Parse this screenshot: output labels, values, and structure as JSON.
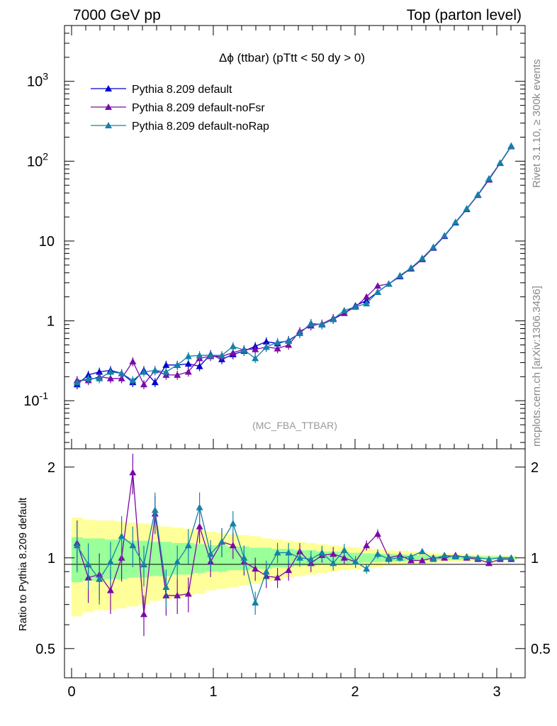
{
  "header": {
    "left": "7000 GeV pp",
    "right": "Top (parton level)"
  },
  "plot_title": "Δϕ (ttbar) (pTtt < 50 dy > 0)",
  "analysis_tag": "(MC_FBA_TTBAR)",
  "side_text_top": "Rivet 3.1.10, ≥ 300k events",
  "side_text_bottom": "mcplots.cern.ch [arXiv:1306.3436]",
  "ratio_ylabel": "Ratio to Pythia 8.209 default",
  "colors": {
    "default": "#0000cc",
    "noFsr": "#7a0aa8",
    "noRap": "#1481a8",
    "band_inner": "#99ff99",
    "band_outer": "#ffff99"
  },
  "legend": [
    {
      "label": "Pythia 8.209 default",
      "key": "default"
    },
    {
      "label": "Pythia 8.209 default-noFsr",
      "key": "noFsr"
    },
    {
      "label": "Pythia 8.209 default-noRap",
      "key": "noRap"
    }
  ],
  "main_ticks": {
    "y": [
      {
        "value": 0.1,
        "label": "10^-1"
      },
      {
        "value": 1,
        "label": "1"
      },
      {
        "value": 10,
        "label": "10"
      },
      {
        "value": 100,
        "label": "10^2"
      },
      {
        "value": 1000,
        "label": "10^3"
      }
    ]
  },
  "ratio_ticks": {
    "y": [
      {
        "value": 0.5,
        "label": "0.5"
      },
      {
        "value": 1,
        "label": "1"
      },
      {
        "value": 2,
        "label": "2"
      }
    ],
    "x": [
      {
        "value": 0,
        "label": "0"
      },
      {
        "value": 1,
        "label": "1"
      },
      {
        "value": 2,
        "label": "2"
      },
      {
        "value": 3,
        "label": "3"
      }
    ]
  },
  "chart_data": [
    {
      "type": "line",
      "title": "Δϕ (ttbar) (pTtt < 50 dy > 0)",
      "y_scale": "log",
      "xlim": [
        -0.05,
        3.2
      ],
      "ylim": [
        0.025,
        5000
      ],
      "legend_position": "top-left",
      "x": [
        0.039,
        0.118,
        0.196,
        0.275,
        0.353,
        0.432,
        0.51,
        0.589,
        0.667,
        0.746,
        0.824,
        0.903,
        0.981,
        1.06,
        1.139,
        1.217,
        1.296,
        1.374,
        1.453,
        1.531,
        1.61,
        1.689,
        1.767,
        1.846,
        1.924,
        2.003,
        2.081,
        2.16,
        2.238,
        2.317,
        2.395,
        2.474,
        2.552,
        2.631,
        2.709,
        2.788,
        2.867,
        2.945,
        3.024,
        3.102
      ],
      "series": [
        {
          "name": "Pythia 8.209 default",
          "key": "default",
          "values": [
            0.16,
            0.21,
            0.23,
            0.24,
            0.22,
            0.17,
            0.24,
            0.17,
            0.28,
            0.28,
            0.29,
            0.27,
            0.38,
            0.33,
            0.38,
            0.42,
            0.48,
            0.55,
            0.52,
            0.57,
            0.7,
            0.93,
            0.9,
            1.05,
            1.25,
            1.55,
            1.8,
            2.3,
            2.9,
            3.6,
            4.6,
            6.0,
            8.2,
            11.5,
            17.0,
            25.0,
            38.0,
            60.0,
            95.0,
            155.0
          ]
        },
        {
          "name": "Pythia 8.209 default-noFsr",
          "key": "noFsr",
          "values": [
            0.18,
            0.18,
            0.2,
            0.19,
            0.19,
            0.31,
            0.16,
            0.24,
            0.21,
            0.21,
            0.23,
            0.34,
            0.36,
            0.36,
            0.4,
            0.44,
            0.44,
            0.47,
            0.45,
            0.5,
            0.74,
            0.87,
            0.92,
            1.08,
            1.25,
            1.5,
            2.0,
            2.75,
            2.9,
            3.65,
            4.5,
            5.9,
            8.3,
            11.6,
            17.2,
            25.2,
            37.5,
            58.5,
            94.5,
            153.0
          ]
        },
        {
          "name": "Pythia 8.209 default-noRap",
          "key": "noRap",
          "values": [
            0.17,
            0.19,
            0.19,
            0.23,
            0.22,
            0.18,
            0.23,
            0.24,
            0.23,
            0.28,
            0.36,
            0.37,
            0.37,
            0.37,
            0.48,
            0.43,
            0.34,
            0.47,
            0.54,
            0.56,
            0.7,
            0.92,
            0.9,
            1.05,
            1.35,
            1.5,
            1.65,
            2.3,
            2.9,
            3.7,
            4.6,
            6.1,
            8.4,
            11.7,
            17.2,
            25.5,
            38.0,
            60.5,
            95.5,
            155.0
          ]
        }
      ]
    },
    {
      "type": "line",
      "ylabel": "Ratio to Pythia 8.209 default",
      "xlim": [
        -0.05,
        3.2
      ],
      "ylim": [
        0.4,
        2.3
      ],
      "reference": 1,
      "x": [
        0.039,
        0.118,
        0.196,
        0.275,
        0.353,
        0.432,
        0.51,
        0.589,
        0.667,
        0.746,
        0.824,
        0.903,
        0.981,
        1.06,
        1.139,
        1.217,
        1.296,
        1.374,
        1.453,
        1.531,
        1.61,
        1.689,
        1.767,
        1.846,
        1.924,
        2.003,
        2.081,
        2.16,
        2.238,
        2.317,
        2.395,
        2.474,
        2.552,
        2.631,
        2.709,
        2.788,
        2.867,
        2.945,
        3.024,
        3.102
      ],
      "band_outer": [
        0.36,
        0.34,
        0.33,
        0.33,
        0.32,
        0.31,
        0.3,
        0.28,
        0.27,
        0.26,
        0.25,
        0.24,
        0.22,
        0.21,
        0.2,
        0.19,
        0.18,
        0.16,
        0.15,
        0.14,
        0.13,
        0.12,
        0.11,
        0.1,
        0.09,
        0.085,
        0.075,
        0.07,
        0.06,
        0.055,
        0.05,
        0.045,
        0.04,
        0.035,
        0.03,
        0.028,
        0.025,
        0.022,
        0.02,
        0.018
      ],
      "band_inner": [
        0.17,
        0.16,
        0.16,
        0.15,
        0.15,
        0.14,
        0.14,
        0.13,
        0.13,
        0.12,
        0.12,
        0.11,
        0.1,
        0.1,
        0.09,
        0.09,
        0.08,
        0.08,
        0.07,
        0.07,
        0.06,
        0.06,
        0.05,
        0.05,
        0.045,
        0.04,
        0.035,
        0.032,
        0.03,
        0.027,
        0.024,
        0.021,
        0.019,
        0.017,
        0.015,
        0.013,
        0.012,
        0.011,
        0.01,
        0.009
      ],
      "series": [
        {
          "name": "Pythia 8.209 default-noFsr",
          "key": "noFsr",
          "values": [
            1.12,
            0.86,
            0.88,
            0.78,
            1.0,
            1.92,
            0.65,
            1.4,
            0.75,
            0.75,
            0.76,
            1.27,
            0.97,
            1.13,
            1.1,
            0.97,
            0.92,
            0.87,
            0.86,
            0.91,
            1.05,
            0.96,
            1.02,
            1.03,
            1.0,
            0.97,
            1.1,
            1.2,
            1.0,
            1.02,
            0.98,
            0.98,
            1.0,
            1.0,
            1.02,
            1.0,
            0.99,
            0.96,
            0.99,
            0.99
          ]
        },
        {
          "name": "Pythia 8.209 default-noRap",
          "key": "noRap",
          "values": [
            1.1,
            0.95,
            0.85,
            0.97,
            1.18,
            1.1,
            0.95,
            1.44,
            0.8,
            0.97,
            1.1,
            1.47,
            1.03,
            1.13,
            1.3,
            1.0,
            0.71,
            0.9,
            1.04,
            1.04,
            1.0,
            0.99,
            1.04,
            0.96,
            1.06,
            0.97,
            0.92,
            1.03,
            0.99,
            1.0,
            1.01,
            1.05,
            0.99,
            1.02,
            1.01,
            1.01,
            1.0,
            0.99,
            1.0,
            1.0
          ]
        }
      ]
    }
  ]
}
